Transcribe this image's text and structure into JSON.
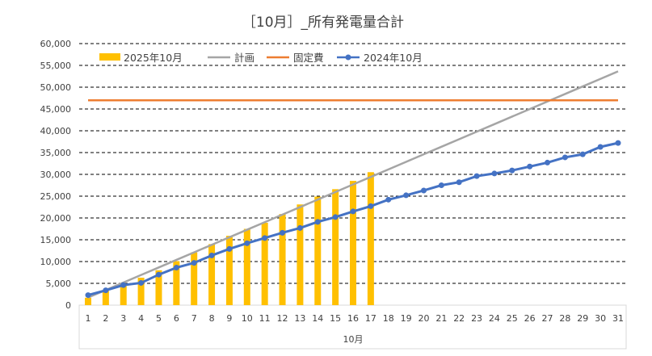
{
  "chart_data": {
    "type": "bar+line",
    "title": "［10月］_所有発電量合計",
    "xlabel": "10月",
    "ylabel": "",
    "ylim": [
      0,
      60000
    ],
    "ytick_step": 5000,
    "yticks": [
      "0",
      "5,000",
      "10,000",
      "15,000",
      "20,000",
      "25,000",
      "30,000",
      "35,000",
      "40,000",
      "45,000",
      "50,000",
      "55,000",
      "60,000"
    ],
    "categories": [
      "1",
      "2",
      "3",
      "4",
      "5",
      "6",
      "7",
      "8",
      "9",
      "10",
      "11",
      "12",
      "13",
      "14",
      "15",
      "16",
      "17",
      "18",
      "19",
      "20",
      "21",
      "22",
      "23",
      "24",
      "25",
      "26",
      "27",
      "28",
      "29",
      "30",
      "31"
    ],
    "grid": true,
    "legend_position": "top-left",
    "series": [
      {
        "name": "2025年10月",
        "type": "bar",
        "color": "#FFC000",
        "values": [
          1700,
          3300,
          4900,
          6300,
          8000,
          10100,
          12100,
          14000,
          15900,
          17500,
          18900,
          20900,
          23100,
          24900,
          26600,
          28500,
          30500,
          null,
          null,
          null,
          null,
          null,
          null,
          null,
          null,
          null,
          null,
          null,
          null,
          null,
          null
        ]
      },
      {
        "name": "計画",
        "type": "line",
        "color": "#A5A5A5",
        "values": [
          1730,
          3460,
          5190,
          6920,
          8650,
          10380,
          12110,
          13840,
          15570,
          17300,
          19030,
          20760,
          22490,
          24220,
          25950,
          27680,
          29410,
          31140,
          32870,
          34600,
          36330,
          38060,
          39790,
          41520,
          43250,
          44980,
          46710,
          48440,
          50170,
          51900,
          53630
        ]
      },
      {
        "name": "固定費",
        "type": "line",
        "color": "#ED7D31",
        "values": [
          47000,
          47000,
          47000,
          47000,
          47000,
          47000,
          47000,
          47000,
          47000,
          47000,
          47000,
          47000,
          47000,
          47000,
          47000,
          47000,
          47000,
          47000,
          47000,
          47000,
          47000,
          47000,
          47000,
          47000,
          47000,
          47000,
          47000,
          47000,
          47000,
          47000,
          47000
        ]
      },
      {
        "name": "2024年10月",
        "type": "line-marker",
        "color": "#4472C4",
        "values": [
          2300,
          3400,
          4600,
          5100,
          7000,
          8600,
          9700,
          11400,
          12900,
          14200,
          15400,
          16600,
          17700,
          19100,
          20200,
          21500,
          22700,
          24200,
          25200,
          26300,
          27500,
          28200,
          29600,
          30200,
          30900,
          31800,
          32700,
          33900,
          34600,
          36300,
          37200
        ]
      }
    ]
  }
}
